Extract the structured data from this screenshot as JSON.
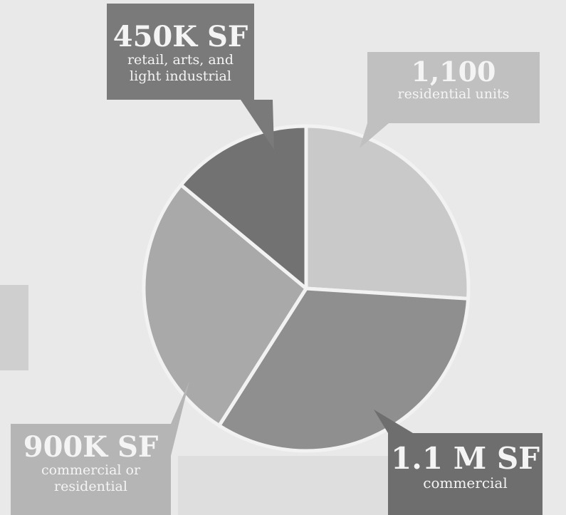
{
  "colors": {
    "background": "#e9e9e9",
    "slice_light": "#c9c9c9",
    "slice_mid": "#a9a9a9",
    "slice_dark": "#8f8f8f",
    "slice_darkest": "#727272",
    "callout_text": "#f4f4f4"
  },
  "chart_data": {
    "type": "pie",
    "title": "",
    "legend": "none",
    "slices": [
      {
        "value_label": "1,100",
        "label": "residential units",
        "percent": 26,
        "color": "#c9c9c9"
      },
      {
        "value_label": "1.1 M SF",
        "label": "commercial",
        "percent": 33,
        "color": "#8f8f8f"
      },
      {
        "value_label": "900K SF",
        "label": "commercial or residential",
        "percent": 27,
        "color": "#a9a9a9"
      },
      {
        "value_label": "450K SF",
        "label": "retail, arts, and light industrial",
        "percent": 14,
        "color": "#727272"
      }
    ]
  },
  "callouts": {
    "top_left": {
      "big": "450K SF",
      "line1": "retail, arts, and",
      "line2": "light industrial"
    },
    "top_right": {
      "big": "1,100",
      "line1": "residential units"
    },
    "bottom_left": {
      "big": "900K SF",
      "line1": "commercial or",
      "line2": "residential"
    },
    "bottom_right": {
      "big": "1.1 M SF",
      "line1": "commercial"
    }
  }
}
